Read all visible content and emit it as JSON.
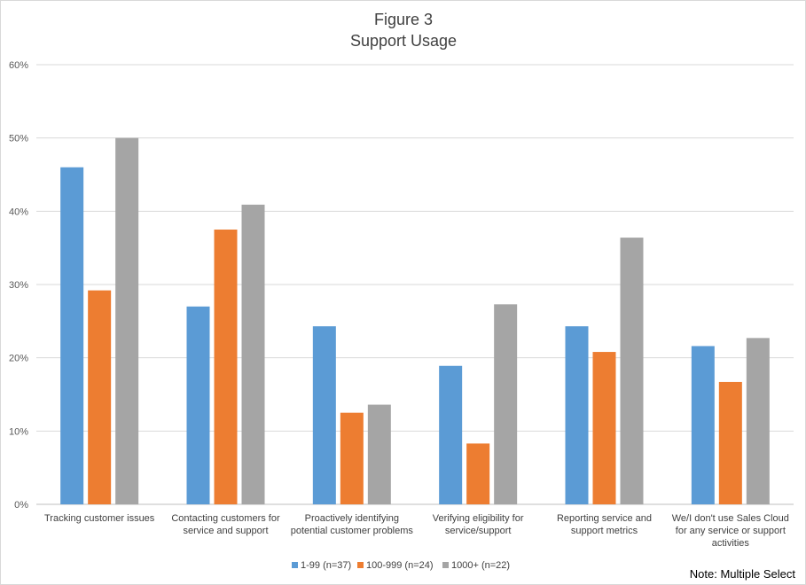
{
  "chart_data": {
    "type": "bar",
    "title": "Figure 3",
    "subtitle": "Support Usage",
    "categories": [
      [
        "Tracking customer issues"
      ],
      [
        "Contacting customers for",
        "service and support"
      ],
      [
        "Proactively identifying",
        "potential customer problems"
      ],
      [
        "Verifying eligibility for",
        "service/support"
      ],
      [
        "Reporting service and",
        "support metrics"
      ],
      [
        "We/I don't use Sales Cloud",
        "for any service or support",
        "activities"
      ]
    ],
    "series": [
      {
        "name": "1-99 (n=37)",
        "color": "#5b9bd5",
        "values": [
          46,
          27,
          24.3,
          18.9,
          24.3,
          21.6
        ]
      },
      {
        "name": "100-999 (n=24)",
        "color": "#ed7d31",
        "values": [
          29.2,
          37.5,
          12.5,
          8.3,
          20.8,
          16.7
        ]
      },
      {
        "name": "1000+ (n=22)",
        "color": "#a5a5a5",
        "values": [
          50,
          40.9,
          13.6,
          27.3,
          36.4,
          22.7
        ]
      }
    ],
    "y_ticks": [
      "0%",
      "10%",
      "20%",
      "30%",
      "40%",
      "50%",
      "60%"
    ],
    "ylim": [
      0,
      60
    ],
    "grid": true,
    "legend_position": "bottom"
  },
  "note": "Note: Multiple Select"
}
